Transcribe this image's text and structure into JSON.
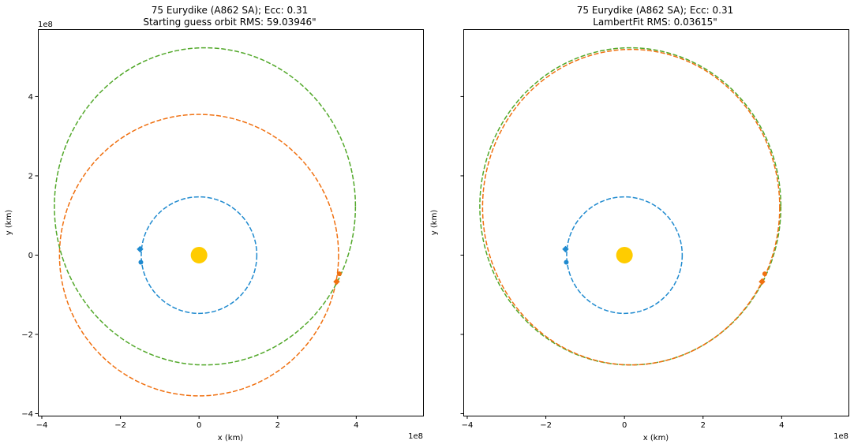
{
  "chart_data": [
    {
      "type": "line",
      "title": "75 Eurydike (A862 SA); Ecc: 0.31",
      "subtitle": "Starting guess orbit RMS: 59.03946\"",
      "xlabel": "x (km)",
      "ylabel": "y (km)",
      "xlim": [
        -4.1,
        5.7
      ],
      "ylim": [
        -4.05,
        5.7
      ],
      "axis_scale": "1e8",
      "x_ticks": [
        -4,
        -2,
        0,
        2,
        4
      ],
      "y_ticks": [
        -4,
        -2,
        0,
        2,
        4
      ],
      "x_tick_labels": [
        "−4",
        "−2",
        "0",
        "2",
        "4"
      ],
      "y_tick_labels": [
        "−4",
        "−2",
        "0",
        "2",
        "4"
      ],
      "grid": false,
      "sun": {
        "x": 0,
        "y": 0,
        "color": "#FFCC00"
      },
      "orbits": [
        {
          "color": "#1F8ACF",
          "dash": true,
          "cx": 0.0,
          "cy": 0.0,
          "rx": 1.47,
          "ry": 1.47
        },
        {
          "color": "#F07010",
          "dash": true,
          "cx": 0.0,
          "cy": 0.0,
          "rx": 3.55,
          "ry": 3.55
        },
        {
          "color": "#52A82A",
          "dash": true,
          "cx": 0.15,
          "cy": 1.23,
          "rx": 3.83,
          "ry": 4.0
        }
      ],
      "markers": [
        {
          "shape": "diamond",
          "color": "#1F8ACF",
          "x": -1.5,
          "y": 0.15
        },
        {
          "shape": "circle",
          "color": "#1F8ACF",
          "x": -1.48,
          "y": -0.18
        },
        {
          "shape": "diamond",
          "color": "#F07010",
          "x": 3.5,
          "y": -0.67
        },
        {
          "shape": "circle",
          "color": "#F07010",
          "x": 3.57,
          "y": -0.47
        }
      ]
    },
    {
      "type": "line",
      "title": "75 Eurydike (A862 SA); Ecc: 0.31",
      "subtitle": "LambertFit RMS: 0.03615\"",
      "xlabel": "x (km)",
      "ylabel": "y (km)",
      "xlim": [
        -4.1,
        5.7
      ],
      "ylim": [
        -4.05,
        5.7
      ],
      "axis_scale": "1e8",
      "x_ticks": [
        -4,
        -2,
        0,
        2,
        4
      ],
      "y_ticks": [
        -4,
        -2,
        0,
        2,
        4
      ],
      "x_tick_labels": [
        "−4",
        "−2",
        "0",
        "2",
        "4"
      ],
      "y_tick_labels": [
        "",
        "",
        "",
        "",
        ""
      ],
      "grid": false,
      "sun": {
        "x": 0,
        "y": 0,
        "color": "#FFCC00"
      },
      "orbits": [
        {
          "color": "#1F8ACF",
          "dash": true,
          "cx": 0.0,
          "cy": 0.0,
          "rx": 1.47,
          "ry": 1.47
        },
        {
          "color": "#52A82A",
          "dash": true,
          "cx": 0.15,
          "cy": 1.23,
          "rx": 3.83,
          "ry": 4.0
        },
        {
          "color": "#F07010",
          "dash": true,
          "cx": 0.17,
          "cy": 1.21,
          "rx": 3.78,
          "ry": 3.98
        }
      ],
      "markers": [
        {
          "shape": "diamond",
          "color": "#1F8ACF",
          "x": -1.5,
          "y": 0.15
        },
        {
          "shape": "circle",
          "color": "#1F8ACF",
          "x": -1.48,
          "y": -0.18
        },
        {
          "shape": "diamond",
          "color": "#F07010",
          "x": 3.5,
          "y": -0.67
        },
        {
          "shape": "circle",
          "color": "#F07010",
          "x": 3.57,
          "y": -0.47
        }
      ]
    }
  ]
}
